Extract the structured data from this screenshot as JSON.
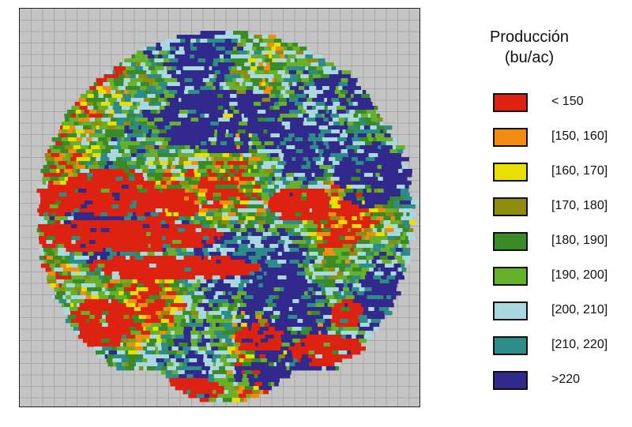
{
  "legend": {
    "title_line1": "Producción",
    "title_line2": "(bu/ac)",
    "items": [
      {
        "label": "< 150",
        "color": "#dd2211"
      },
      {
        "label": "[150, 160]",
        "color": "#f08c10"
      },
      {
        "label": "[160, 170]",
        "color": "#e8e000"
      },
      {
        "label": "[170, 180]",
        "color": "#908c10"
      },
      {
        "label": "[180, 190]",
        "color": "#3a8a28"
      },
      {
        "label": "[190, 200]",
        "color": "#66b02a"
      },
      {
        "label": "[200, 210]",
        "color": "#a9d8de"
      },
      {
        "label": "[210, 220]",
        "color": "#2e8c88"
      },
      {
        "label": ">220",
        "color": "#32298c"
      }
    ]
  },
  "map": {
    "background_color": "#c4c4c4",
    "grid_color": "#a8a8a8"
  }
}
